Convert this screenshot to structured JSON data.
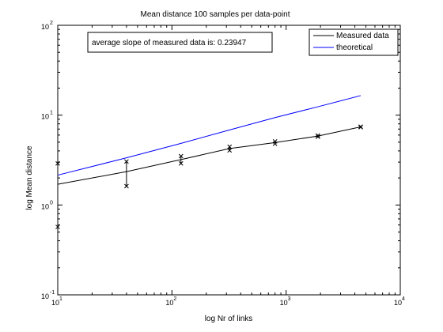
{
  "chart_data": {
    "type": "line",
    "title": "Mean distance 100 samples per data-point",
    "xlabel": "log Nr of links",
    "ylabel": "log Mean distance",
    "x_scale": "log",
    "y_scale": "log",
    "xlim": [
      10,
      10000
    ],
    "ylim": [
      0.1,
      100
    ],
    "grid": false,
    "legend_position": "top-right",
    "annotation": "average slope of measured data is: 0.23947",
    "x_ticks": [
      {
        "value": 10,
        "base": "10",
        "exp": "1"
      },
      {
        "value": 100,
        "base": "10",
        "exp": "2"
      },
      {
        "value": 1000,
        "base": "10",
        "exp": "3"
      },
      {
        "value": 10000,
        "base": "10",
        "exp": "4"
      }
    ],
    "y_ticks": [
      {
        "value": 0.1,
        "base": "10",
        "exp": "-1"
      },
      {
        "value": 1,
        "base": "10",
        "exp": "0"
      },
      {
        "value": 10,
        "base": "10",
        "exp": "1"
      },
      {
        "value": 100,
        "base": "10",
        "exp": "2"
      }
    ],
    "series": [
      {
        "name": "Measured data",
        "color": "#000000",
        "x": [
          10,
          40,
          120,
          320,
          800,
          1900,
          4500
        ],
        "y": [
          1.7,
          2.35,
          3.2,
          4.25,
          4.95,
          5.85,
          7.4
        ],
        "error_low": [
          0.57,
          1.62,
          2.9,
          4.05,
          4.8,
          5.75,
          7.35
        ],
        "error_high": [
          2.9,
          3.05,
          3.5,
          4.45,
          5.1,
          5.95,
          7.45
        ]
      },
      {
        "name": "theoretical",
        "color": "#0000ff",
        "x": [
          10,
          40,
          120,
          320,
          800,
          1900,
          4500
        ],
        "y": [
          2.15,
          3.35,
          4.85,
          6.85,
          9.4,
          12.4,
          16.5
        ]
      }
    ]
  }
}
